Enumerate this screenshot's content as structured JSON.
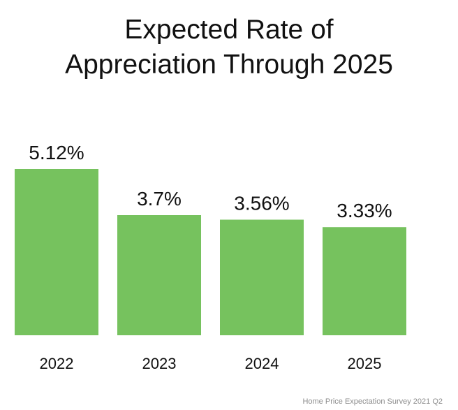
{
  "title_lines": [
    "Expected Rate of",
    "Appreciation Through 2025"
  ],
  "source": "Home Price Expectation Survey 2021 Q2",
  "colors": {
    "bar": "#76c25e",
    "text": "#111111"
  },
  "chart_data": {
    "type": "bar",
    "title": "Expected Rate of Appreciation Through 2025",
    "categories": [
      "2022",
      "2023",
      "2024",
      "2025"
    ],
    "values": [
      5.12,
      3.7,
      3.56,
      3.33
    ],
    "data_labels": [
      "5.12%",
      "3.7%",
      "3.56%",
      "3.33%"
    ],
    "xlabel": "",
    "ylabel": "",
    "ylim": [
      0,
      5.12
    ],
    "grid": false,
    "legend": "none"
  }
}
